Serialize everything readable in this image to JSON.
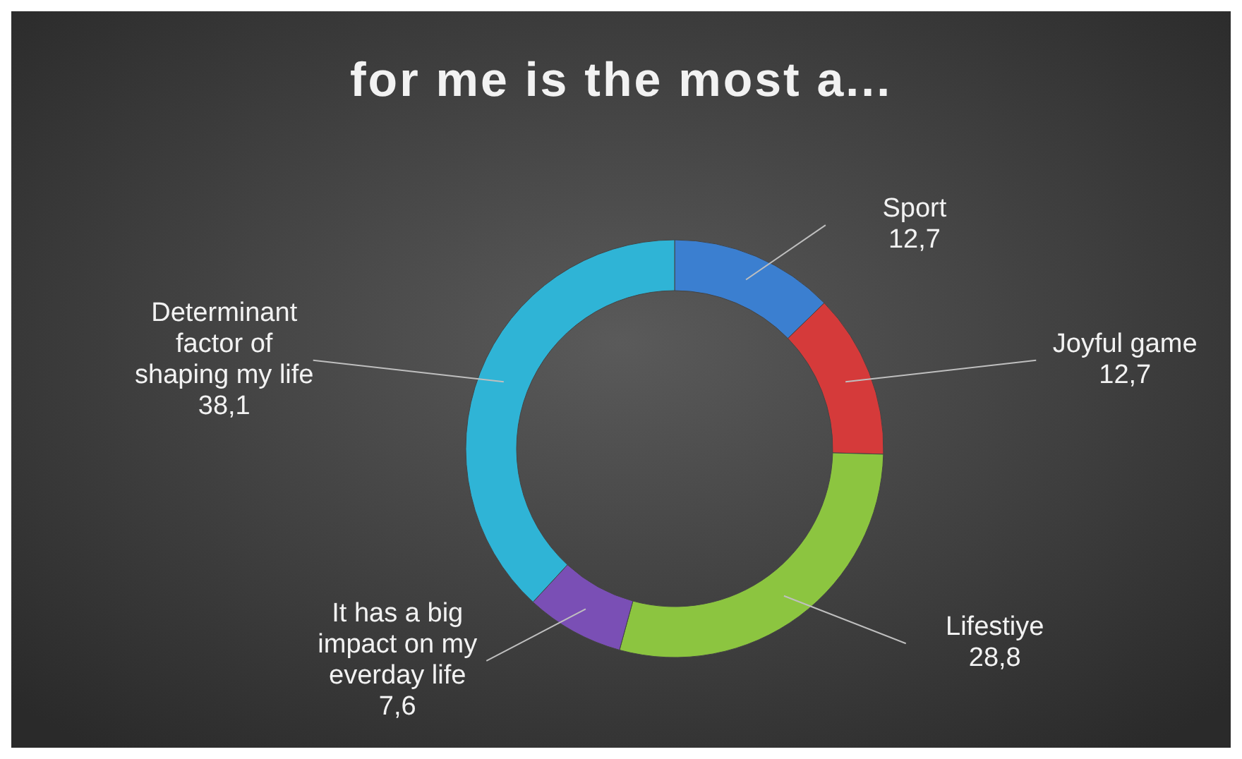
{
  "chart_data": {
    "type": "donut",
    "title": "for me is the most a...",
    "categories": [
      "Sport",
      "Joyful game",
      "Lifestiye",
      "It has a big impact on my everday life",
      "Determinant factor of shaping my life"
    ],
    "values": [
      12.7,
      12.7,
      28.8,
      7.6,
      38.1
    ],
    "value_labels": [
      "12,7",
      "12,7",
      "28,8",
      "7,6",
      "38,1"
    ],
    "colors": [
      "#3b7fd0",
      "#d53a3a",
      "#8cc540",
      "#7a4fb5",
      "#2fb4d6"
    ]
  }
}
